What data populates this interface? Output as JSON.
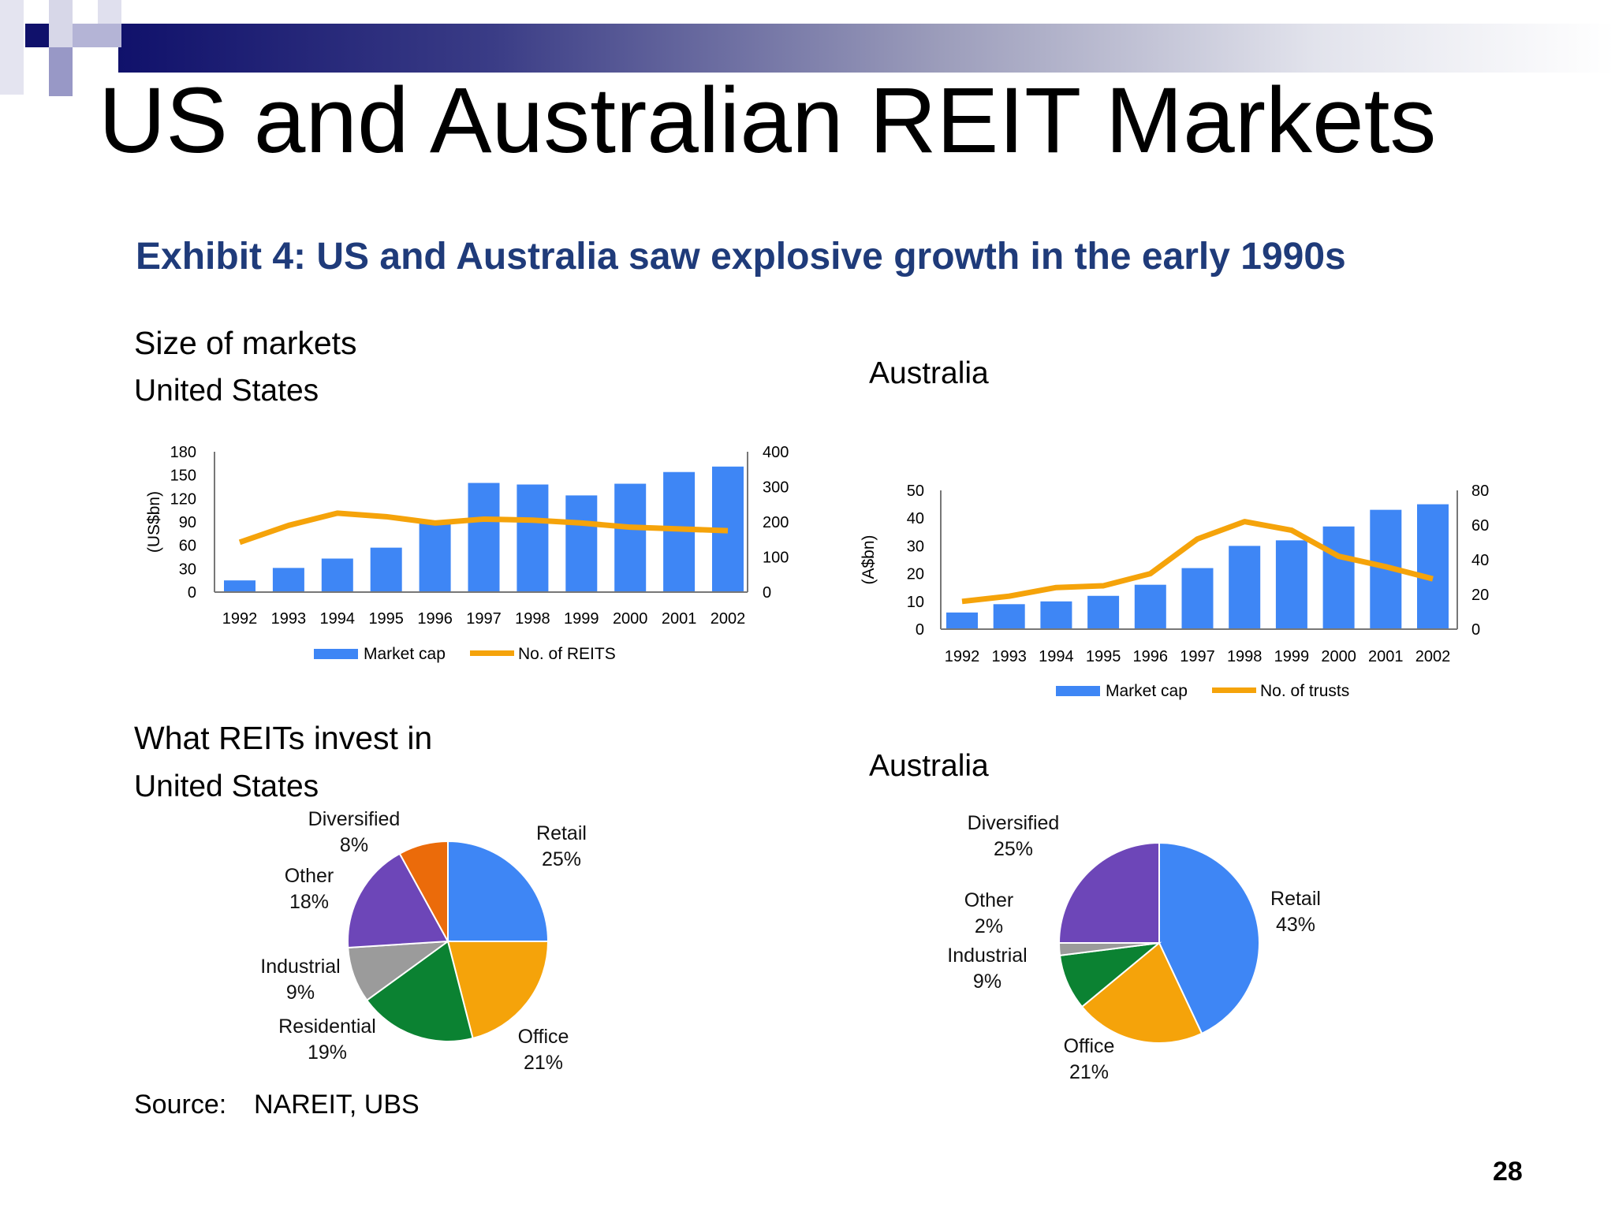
{
  "slide": {
    "title": "US and Australian REIT Markets",
    "exhibit_title": "Exhibit 4: US and Australia saw explosive growth in the early 1990s",
    "size_heading": "Size of markets",
    "us_label_1": "United States",
    "au_label_1": "Australia",
    "invest_heading": "What REITs invest in",
    "us_label_2": "United States",
    "au_label_2": "Australia",
    "source_label": "Source:",
    "source_value": "NAREIT, UBS",
    "page_number": "28",
    "accent_navy": "#10116b",
    "title_blue": "#1f3b7a"
  },
  "chart_data": [
    {
      "type": "bar",
      "id": "us-size",
      "categories": [
        "1992",
        "1993",
        "1994",
        "1995",
        "1996",
        "1997",
        "1998",
        "1999",
        "2000",
        "2001",
        "2002"
      ],
      "series": [
        {
          "name": "Market cap",
          "kind": "bar",
          "axis": "left",
          "color": "#3e86f5",
          "values": [
            15,
            31,
            43,
            57,
            88,
            140,
            138,
            124,
            139,
            154,
            161
          ]
        },
        {
          "name": "No. of REITS",
          "kind": "line",
          "axis": "right",
          "color": "#f5a30a",
          "values": [
            142,
            190,
            225,
            215,
            197,
            208,
            205,
            197,
            185,
            180,
            175
          ]
        }
      ],
      "ylabel": "(US$bn)",
      "ylim": [
        0,
        180
      ],
      "yticks": [
        0,
        30,
        60,
        90,
        120,
        150,
        180
      ],
      "y2lim": [
        0,
        400
      ],
      "y2ticks": [
        0,
        100,
        200,
        300,
        400
      ],
      "legend": "bottom"
    },
    {
      "type": "bar",
      "id": "au-size",
      "categories": [
        "1992",
        "1993",
        "1994",
        "1995",
        "1996",
        "1997",
        "1998",
        "1999",
        "2000",
        "2001",
        "2002"
      ],
      "series": [
        {
          "name": "Market cap",
          "kind": "bar",
          "axis": "left",
          "color": "#3e86f5",
          "values": [
            6,
            9,
            10,
            12,
            16,
            22,
            30,
            32,
            37,
            43,
            45
          ]
        },
        {
          "name": "No. of trusts",
          "kind": "line",
          "axis": "right",
          "color": "#f5a30a",
          "values": [
            16,
            19,
            24,
            25,
            32,
            52,
            62,
            57,
            42,
            36,
            29
          ]
        }
      ],
      "ylabel": "(A$bn)",
      "ylim": [
        0,
        50
      ],
      "yticks": [
        0,
        10,
        20,
        30,
        40,
        50
      ],
      "y2lim": [
        0,
        80
      ],
      "y2ticks": [
        0,
        20,
        40,
        60,
        80
      ],
      "legend": "bottom"
    },
    {
      "type": "pie",
      "id": "us-invest",
      "slices": [
        {
          "name": "Retail",
          "value": 25,
          "label": "25%",
          "color": "#3e86f5"
        },
        {
          "name": "Office",
          "value": 21,
          "label": "21%",
          "color": "#f5a30a"
        },
        {
          "name": "Residential",
          "value": 19,
          "label": "19%",
          "color": "#0b8232"
        },
        {
          "name": "Industrial",
          "value": 9,
          "label": "9%",
          "color": "#9b9b9b"
        },
        {
          "name": "Other",
          "value": 18,
          "label": "18%",
          "color": "#6d46b8"
        },
        {
          "name": "Diversified",
          "value": 8,
          "label": "8%",
          "color": "#eb6b0a"
        }
      ]
    },
    {
      "type": "pie",
      "id": "au-invest",
      "slices": [
        {
          "name": "Retail",
          "value": 43,
          "label": "43%",
          "color": "#3e86f5"
        },
        {
          "name": "Office",
          "value": 21,
          "label": "21%",
          "color": "#f5a30a"
        },
        {
          "name": "Industrial",
          "value": 9,
          "label": "9%",
          "color": "#0b8232"
        },
        {
          "name": "Other",
          "value": 2,
          "label": "2%",
          "color": "#9b9b9b"
        },
        {
          "name": "Diversified",
          "value": 25,
          "label": "25%",
          "color": "#6d46b8"
        }
      ]
    }
  ]
}
